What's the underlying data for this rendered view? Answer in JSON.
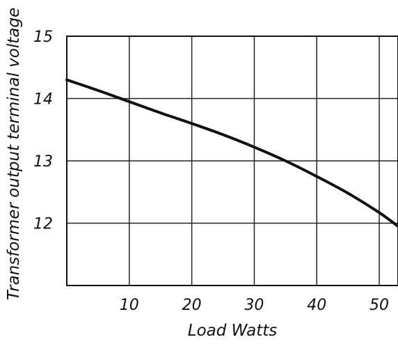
{
  "chart_data": {
    "type": "line",
    "title": "",
    "xlabel": "Load Watts",
    "ylabel": "Transformer output terminal voltage",
    "xlim": [
      0,
      53
    ],
    "ylim": [
      11,
      15
    ],
    "x_ticks": [
      "10",
      "20",
      "30",
      "40",
      "50"
    ],
    "y_ticks": [
      "12",
      "13",
      "14",
      "15"
    ],
    "grid": true,
    "legend": "none",
    "series": [
      {
        "color": "#111111",
        "points": [
          [
            0,
            14.3
          ],
          [
            5,
            14.13
          ],
          [
            10,
            13.95
          ],
          [
            15,
            13.77
          ],
          [
            20,
            13.6
          ],
          [
            25,
            13.42
          ],
          [
            30,
            13.22
          ],
          [
            35,
            13.0
          ],
          [
            40,
            12.75
          ],
          [
            45,
            12.48
          ],
          [
            50,
            12.17
          ],
          [
            53,
            11.95
          ]
        ]
      }
    ]
  }
}
